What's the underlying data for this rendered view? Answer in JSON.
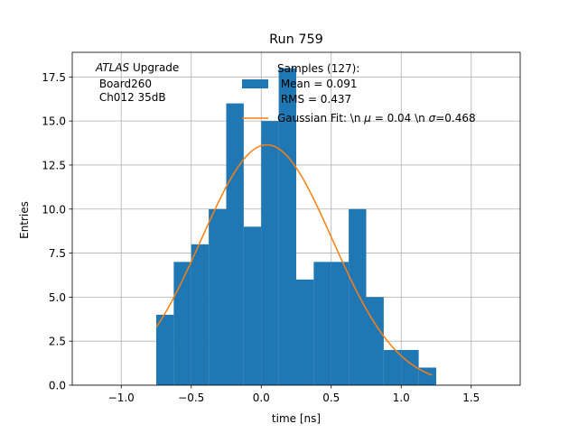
{
  "chart_data": {
    "type": "bar",
    "title": "Run 759",
    "xlabel": "time [ns]",
    "ylabel": "Entries",
    "xlim": [
      -1.35,
      1.85
    ],
    "ylim": [
      0,
      18.9
    ],
    "grid": true,
    "xticks": [
      -1.0,
      -0.5,
      0.0,
      0.5,
      1.0,
      1.5
    ],
    "xtick_labels": [
      "−1.0",
      "−0.5",
      "0.0",
      "0.5",
      "1.0",
      "1.5"
    ],
    "yticks": [
      0,
      2.5,
      5,
      7.5,
      10,
      12.5,
      15,
      17.5
    ],
    "ytick_labels": [
      "0.0",
      "2.5",
      "5.0",
      "7.5",
      "10.0",
      "12.5",
      "15.0",
      "17.5"
    ],
    "annotation": {
      "italic": "ATLAS",
      "rest": " Upgrade",
      "line2": " Board260",
      "line3": " Ch012 35dB"
    },
    "legend": {
      "placement": "top-center",
      "histogram_lines": [
        "Samples (127):",
        " Mean = 0.091",
        " RMS = 0.437"
      ],
      "fit_label_parts": [
        "Gaussian Fit: \\n ",
        "μ",
        " = 0.04 \\n ",
        "σ",
        "=0.468"
      ]
    },
    "colors": {
      "histogram": "#1f77b4",
      "fit": "#ff7f0e",
      "grid": "#b0b0b0"
    },
    "histogram": {
      "name": "Samples (127):",
      "bin_edges": [
        -0.75,
        -0.625,
        -0.5,
        -0.375,
        -0.25,
        -0.125,
        0.0,
        0.125,
        0.25,
        0.375,
        0.5,
        0.625,
        0.75,
        0.875,
        1.0,
        1.125,
        1.25
      ],
      "counts": [
        4,
        7,
        8,
        10,
        16,
        9,
        15,
        18,
        6,
        7,
        7,
        10,
        5,
        2,
        2,
        1
      ]
    },
    "fit": {
      "name": "Gaussian Fit",
      "amplitude": 13.65,
      "mu": 0.04,
      "sigma": 0.468,
      "x_range": [
        -0.75,
        1.22
      ]
    }
  }
}
